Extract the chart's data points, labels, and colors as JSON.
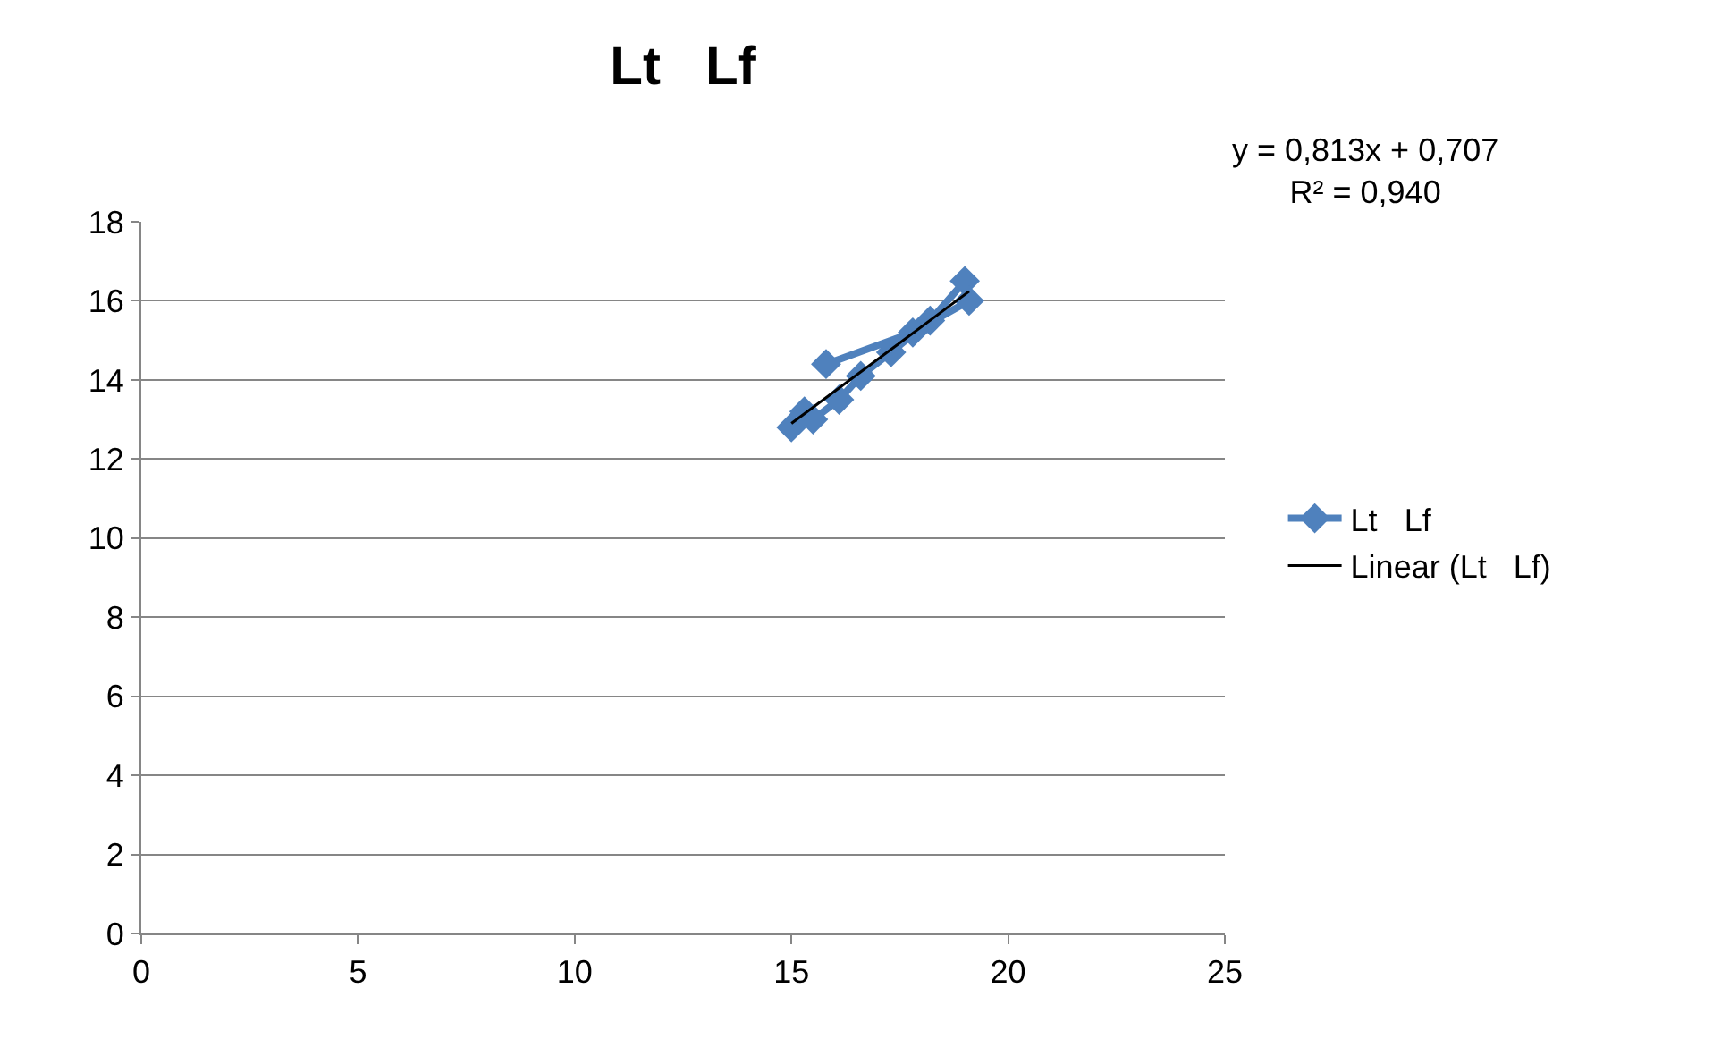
{
  "chart_data": {
    "type": "line",
    "title": "Lt   Lf",
    "annotations": [
      "y = 0,813x + 0,707\nR² = 0,940"
    ],
    "xlim": [
      0,
      25
    ],
    "xticks": [
      0,
      5,
      10,
      15,
      20,
      25
    ],
    "ylim": [
      0,
      18
    ],
    "yticks": [
      0,
      2,
      4,
      6,
      8,
      10,
      12,
      14,
      16,
      18
    ],
    "grid": "y",
    "legend": "right",
    "marker": "diamond",
    "series": [
      {
        "name": "Lt   Lf",
        "color": "#4f81bd",
        "x": [
          15.0,
          15.3,
          15.5,
          16.1,
          16.6,
          17.3,
          18.2,
          19.0,
          19.1,
          17.8,
          15.8
        ],
        "values": [
          12.8,
          13.2,
          13.0,
          13.5,
          14.1,
          14.7,
          15.5,
          16.5,
          16.0,
          15.2,
          14.4
        ]
      },
      {
        "name": "Linear (Lt   Lf)",
        "color": "#000000",
        "type": "line",
        "marker": "none",
        "x": [
          15.0,
          19.1
        ],
        "values": [
          12.9,
          16.24
        ]
      }
    ]
  }
}
